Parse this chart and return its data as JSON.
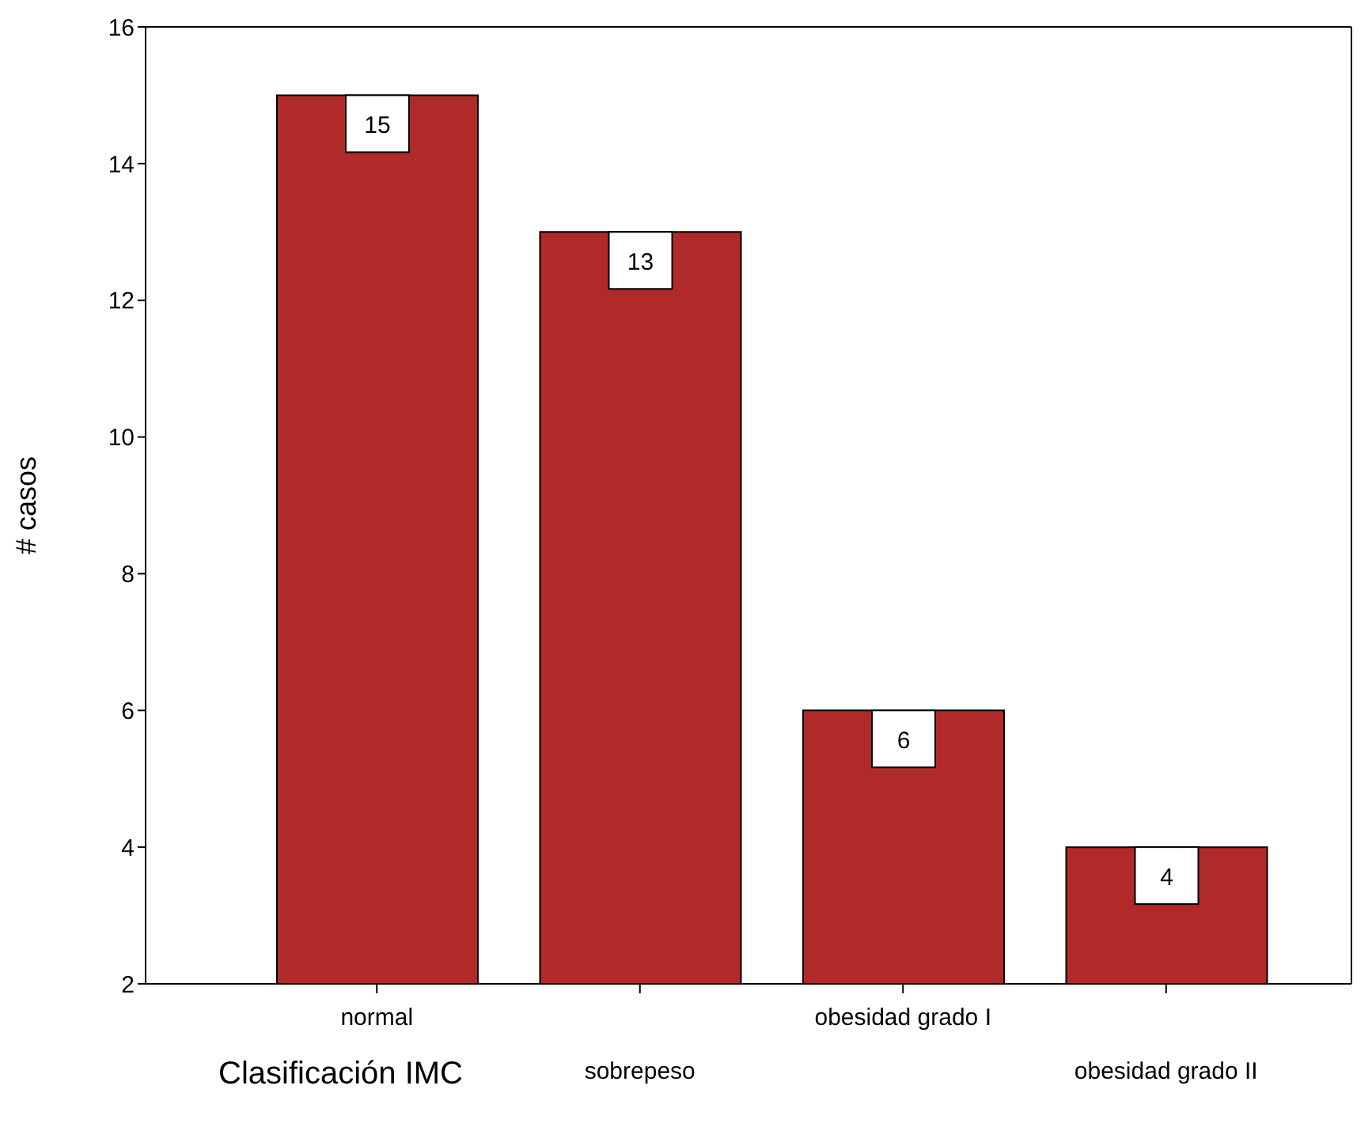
{
  "chart_data": {
    "type": "bar",
    "xlabel": "Clasificación IMC",
    "ylabel": "# casos",
    "categories": [
      "normal",
      "sobrepeso",
      "obesidad grado I",
      "obesidad grado II"
    ],
    "values": [
      15,
      13,
      6,
      4
    ],
    "color": "#b02a2a",
    "ylim": [
      2,
      16
    ],
    "yticks": [
      2,
      4,
      6,
      8,
      10,
      12,
      14,
      16
    ],
    "grid": false,
    "legend": false,
    "data_labels": true
  }
}
